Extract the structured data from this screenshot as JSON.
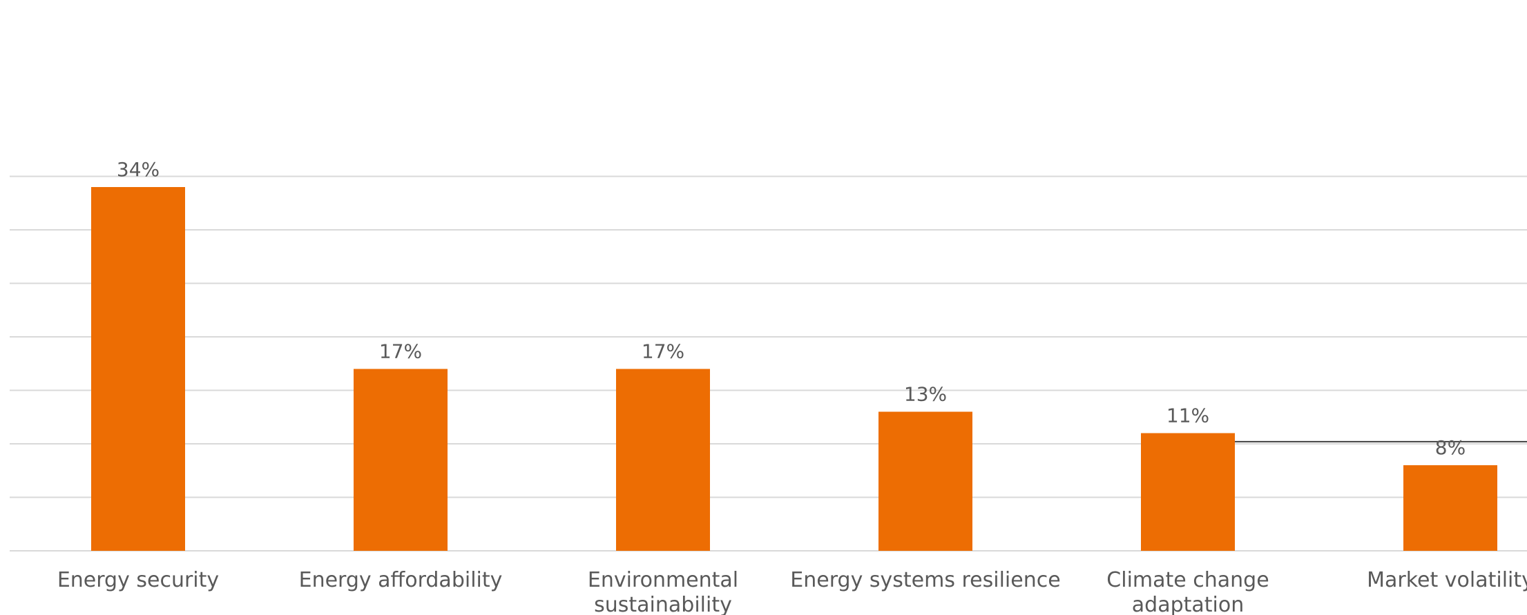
{
  "chart_data": {
    "type": "bar",
    "categories": [
      [
        "Energy security"
      ],
      [
        "Energy affordability"
      ],
      [
        "Environmental",
        "sustainability"
      ],
      [
        "Energy systems resilience"
      ],
      [
        "Climate change",
        "adaptation"
      ],
      [
        "Market volatility"
      ]
    ],
    "values": [
      34,
      17,
      17,
      13,
      11,
      8
    ],
    "data_labels": [
      "34%",
      "17%",
      "17%",
      "13%",
      "11%",
      "8%"
    ],
    "title": "",
    "xlabel": "",
    "ylabel": "",
    "ylim": [
      0,
      35
    ],
    "grid": true,
    "legend": "none",
    "colors": {
      "bar": "#ED6D03",
      "grid": "#d9d9d9",
      "text": "#595959",
      "reference_line": "#404040"
    },
    "annotations": [
      {
        "type": "reference-line",
        "y": 10.2,
        "from_category": 4,
        "to": "right-edge"
      }
    ]
  }
}
